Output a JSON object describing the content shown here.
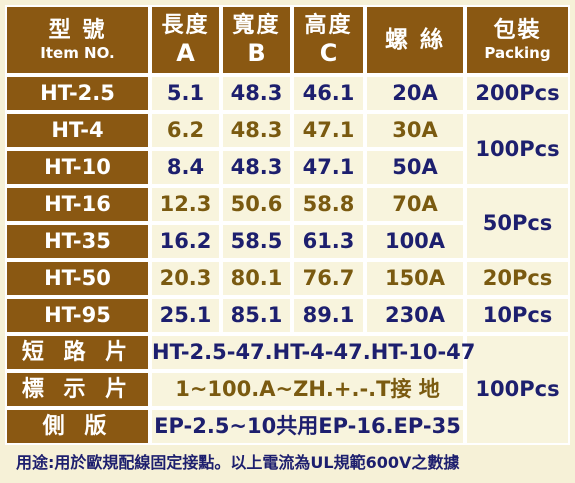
{
  "header": {
    "model_zh": "型 號",
    "model_en": "Item NO.",
    "length_zh": "長度",
    "length_en": "A",
    "width_zh": "寬度",
    "width_en": "B",
    "height_zh": "高度",
    "height_en": "C",
    "screw_zh": "螺 絲",
    "packing_zh": "包裝",
    "packing_en": "Packing"
  },
  "rows": [
    {
      "model": "HT-2.5",
      "a": "5.1",
      "b": "48.3",
      "c": "46.1",
      "screw": "20A"
    },
    {
      "model": "HT-4",
      "a": "6.2",
      "b": "48.3",
      "c": "47.1",
      "screw": "30A"
    },
    {
      "model": "HT-10",
      "a": "8.4",
      "b": "48.3",
      "c": "47.1",
      "screw": "50A"
    },
    {
      "model": "HT-16",
      "a": "12.3",
      "b": "50.6",
      "c": "58.8",
      "screw": "70A"
    },
    {
      "model": "HT-35",
      "a": "16.2",
      "b": "58.5",
      "c": "61.3",
      "screw": "100A"
    },
    {
      "model": "HT-50",
      "a": "20.3",
      "b": "80.1",
      "c": "76.7",
      "screw": "150A"
    },
    {
      "model": "HT-95",
      "a": "25.1",
      "b": "85.1",
      "c": "89.1",
      "screw": "230A"
    }
  ],
  "packing": {
    "p1": "200Pcs",
    "p2": "100Pcs",
    "p3": "50Pcs",
    "p4": "20Pcs",
    "p5": "10Pcs",
    "p6": "100Pcs"
  },
  "accessories": [
    {
      "label": "短 路 片",
      "value": "HT-2.5-47.HT-4-47.HT-10-47"
    },
    {
      "label": "標 示 片",
      "value": "1~100.A~ZH.+.-.T接 地"
    },
    {
      "label": "側 版",
      "value": "EP-2.5~10共用EP-16.EP-35"
    }
  ],
  "note": "用途:用於歐規配線固定接點。以上電流為UL規範600V之數據",
  "colors": {
    "header_bg": "#8a5812",
    "cell_bg": "#f8f4dd",
    "text_blue": "#1d1f6e",
    "text_brown": "#7a5a10",
    "page_bg": "#f6f1d7"
  }
}
